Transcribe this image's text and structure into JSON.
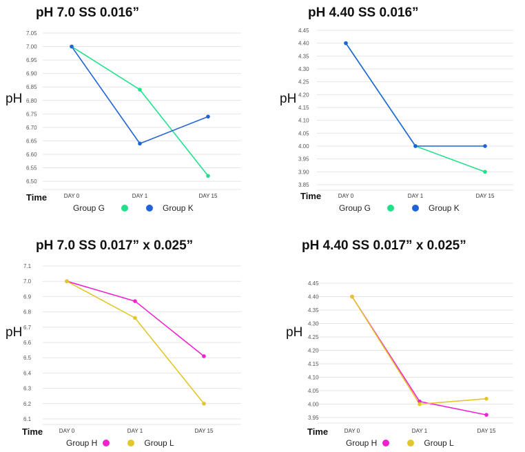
{
  "chart_data": [
    {
      "type": "line",
      "title": "pH 7.0 SS 0.016”",
      "ylabel": "pH",
      "xlabel": "Time",
      "categories": [
        "DAY 0",
        "DAY 1",
        "DAY 15"
      ],
      "yticks": [
        "7.05",
        "7.00",
        "6.95",
        "6.90",
        "6.85",
        "6.80",
        "6.75",
        "6.70",
        "6.65",
        "6.60",
        "6.55",
        "6.50"
      ],
      "ylim": [
        6.49,
        7.05
      ],
      "series": [
        {
          "name": "Group G",
          "color": "#22e08a",
          "values": [
            7.0,
            6.84,
            6.52
          ]
        },
        {
          "name": "Group K",
          "color": "#1f63d6",
          "values": [
            7.0,
            6.64,
            6.74
          ]
        }
      ]
    },
    {
      "type": "line",
      "title": "pH 4.40 SS 0.016”",
      "ylabel": "pH",
      "xlabel": "Time",
      "categories": [
        "DAY 0",
        "DAY 1",
        "DAY 15"
      ],
      "yticks": [
        "4.45",
        "4.40",
        "4.35",
        "4.30",
        "4.25",
        "4.20",
        "4.15",
        "4.10",
        "4.05",
        "4.00",
        "3.95",
        "3.90",
        "3.85"
      ],
      "ylim": [
        3.85,
        4.45
      ],
      "series": [
        {
          "name": "Group G",
          "color": "#22e08a",
          "values": [
            4.4,
            4.0,
            3.9
          ]
        },
        {
          "name": "Group K",
          "color": "#1f63d6",
          "values": [
            4.4,
            4.0,
            4.0
          ]
        }
      ]
    },
    {
      "type": "line",
      "title": "pH 7.0 SS 0.017” x 0.025”",
      "ylabel": "pH",
      "xlabel": "Time",
      "categories": [
        "DAY 0",
        "DAY 1",
        "DAY 15"
      ],
      "yticks": [
        "7.1",
        "7.0",
        "6.9",
        "6.8",
        "6.7",
        "6.6",
        "6.5",
        "6.4",
        "6.3",
        "6.2",
        "6.1"
      ],
      "ylim": [
        6.1,
        7.1
      ],
      "series": [
        {
          "name": "Group H",
          "color": "#f022d0",
          "values": [
            7.0,
            6.87,
            6.51
          ]
        },
        {
          "name": "Group L",
          "color": "#e2c72a",
          "values": [
            7.0,
            6.76,
            6.2
          ]
        }
      ]
    },
    {
      "type": "line",
      "title": "pH 4.40 SS 0.017” x 0.025”",
      "ylabel": "pH",
      "xlabel": "Time",
      "categories": [
        "DAY 0",
        "DAY 1",
        "DAY 15"
      ],
      "yticks": [
        "4.45",
        "4.40",
        "4.35",
        "4.30",
        "4.25",
        "4.20",
        "4.15",
        "4.10",
        "4.05",
        "4.00",
        "3.95"
      ],
      "ylim": [
        3.95,
        4.45
      ],
      "series": [
        {
          "name": "Group H",
          "color": "#f022d0",
          "values": [
            4.4,
            4.01,
            3.96
          ]
        },
        {
          "name": "Group L",
          "color": "#e2c72a",
          "values": [
            4.4,
            4.0,
            4.02
          ]
        }
      ]
    }
  ]
}
